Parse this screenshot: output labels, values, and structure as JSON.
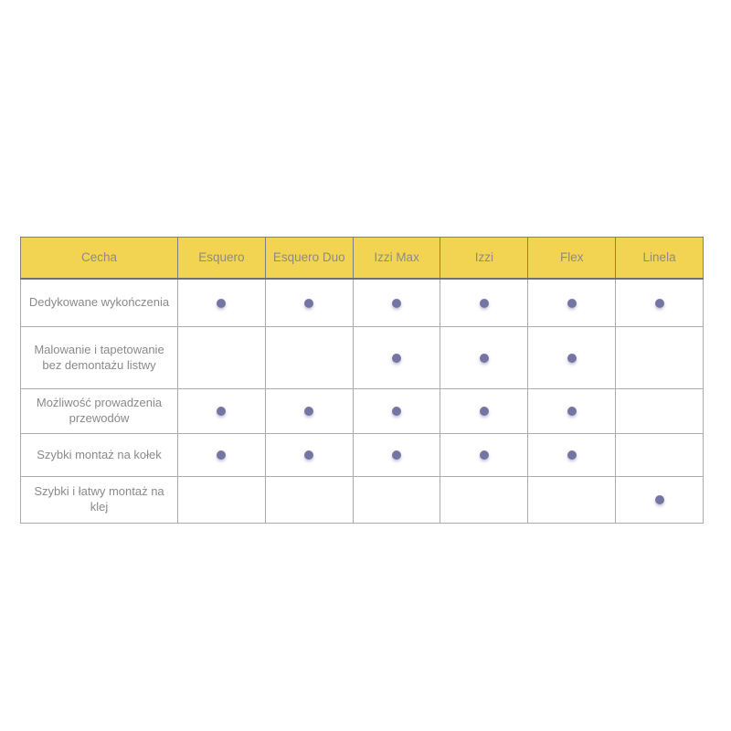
{
  "chart_data": {
    "type": "table",
    "columns": [
      "Cecha",
      "Esquero",
      "Esquero Duo",
      "Izzi Max",
      "Izzi",
      "Flex",
      "Linela"
    ],
    "rows": [
      {
        "feature": "Dedykowane wykończenia",
        "values": [
          true,
          true,
          true,
          true,
          true,
          true
        ]
      },
      {
        "feature": "Malowanie i tapetowanie bez demontażu listwy",
        "values": [
          false,
          false,
          true,
          true,
          true,
          false
        ]
      },
      {
        "feature": "Możliwość prowadzenia przewodów",
        "values": [
          true,
          true,
          true,
          true,
          true,
          false
        ]
      },
      {
        "feature": "Szybki montaż na kołek",
        "values": [
          true,
          true,
          true,
          true,
          true,
          false
        ]
      },
      {
        "feature": "Szybki i łatwy montaż na klej",
        "values": [
          false,
          false,
          false,
          false,
          false,
          true
        ]
      }
    ]
  },
  "colors": {
    "header_bg": "#F3D452",
    "header_text": "#8D8B80",
    "body_text": "#8A8A8A",
    "dot": "#7475A5",
    "border_dark": "#7E7E7E",
    "border_light": "#ABABAB"
  }
}
